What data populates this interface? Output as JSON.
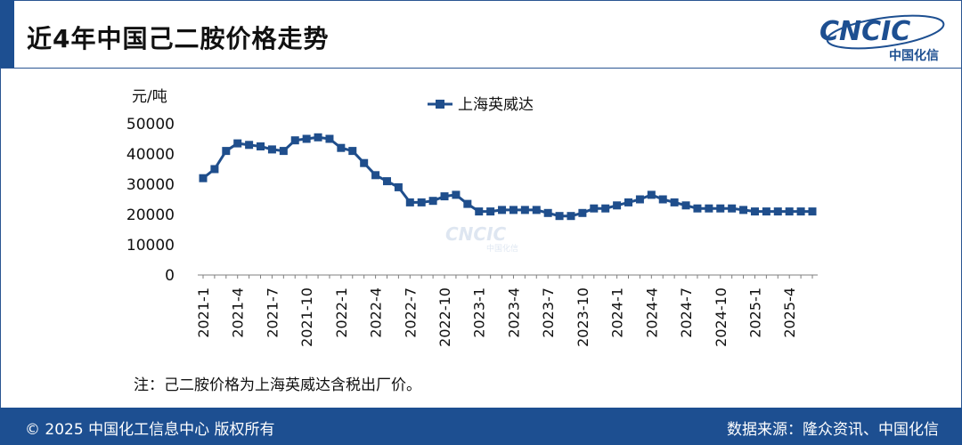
{
  "header": {
    "title": "近4年中国己二胺价格走势",
    "logo_text": "CNCIC",
    "logo_sub": "中国化信"
  },
  "watermark": {
    "text": "CNCIC",
    "sub": "中国化信"
  },
  "colors": {
    "brand": "#1d4f91",
    "series": "#1f4e8c",
    "axis": "#7f7f7f"
  },
  "note": "注：己二胺价格为上海英威达含税出厂价。",
  "footer": {
    "left": "© 2025 中国化工信息中心  版权所有",
    "right": "数据来源：隆众资讯、中国化信"
  },
  "chart_data": {
    "type": "line",
    "ylabel": "元/吨",
    "ylim": [
      0,
      50000
    ],
    "yticks": [
      0,
      10000,
      20000,
      30000,
      40000,
      50000
    ],
    "legend": "top-center",
    "grid": false,
    "categories": [
      "2021-1",
      "2021-2",
      "2021-3",
      "2021-4",
      "2021-5",
      "2021-6",
      "2021-7",
      "2021-8",
      "2021-9",
      "2021-10",
      "2021-11",
      "2021-12",
      "2022-1",
      "2022-2",
      "2022-3",
      "2022-4",
      "2022-5",
      "2022-6",
      "2022-7",
      "2022-8",
      "2022-9",
      "2022-10",
      "2022-11",
      "2022-12",
      "2023-1",
      "2023-2",
      "2023-3",
      "2023-4",
      "2023-5",
      "2023-6",
      "2023-7",
      "2023-8",
      "2023-9",
      "2023-10",
      "2023-11",
      "2023-12",
      "2024-1",
      "2024-2",
      "2024-3",
      "2024-4",
      "2024-5",
      "2024-6",
      "2024-7",
      "2024-8",
      "2024-9",
      "2024-10",
      "2024-11",
      "2024-12",
      "2025-1",
      "2025-2",
      "2025-3",
      "2025-4",
      "2025-5",
      "2025-6"
    ],
    "tick_labels": [
      "2021-1",
      "2021-4",
      "2021-7",
      "2021-10",
      "2022-1",
      "2022-4",
      "2022-7",
      "2022-10",
      "2023-1",
      "2023-4",
      "2023-7",
      "2023-10",
      "2024-1",
      "2024-4",
      "2024-7",
      "2024-10",
      "2025-1",
      "2025-4"
    ],
    "series": [
      {
        "name": "上海英威达",
        "values": [
          32000,
          35000,
          41000,
          43500,
          43000,
          42500,
          41500,
          41000,
          44500,
          45000,
          45500,
          45000,
          42000,
          41000,
          37000,
          33000,
          31000,
          29000,
          24000,
          24000,
          24500,
          26000,
          26500,
          23500,
          21000,
          21000,
          21500,
          21500,
          21500,
          21500,
          20500,
          19500,
          19500,
          20500,
          22000,
          22000,
          23000,
          24000,
          25000,
          26500,
          25000,
          24000,
          23000,
          22000,
          22000,
          22000,
          22000,
          21500,
          21000,
          21000,
          21000,
          21000,
          21000,
          21000
        ]
      }
    ]
  }
}
